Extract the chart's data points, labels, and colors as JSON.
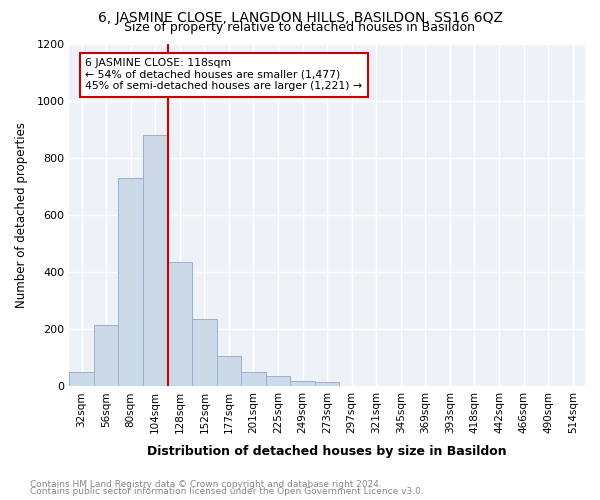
{
  "title": "6, JASMINE CLOSE, LANGDON HILLS, BASILDON, SS16 6QZ",
  "subtitle": "Size of property relative to detached houses in Basildon",
  "xlabel": "Distribution of detached houses by size in Basildon",
  "ylabel": "Number of detached properties",
  "bar_color": "#ccd9e8",
  "bar_edge_color": "#9ab0cc",
  "annotation_line_color": "#cc0000",
  "annotation_box_edge": "#cc0000",
  "annotation_text_lines": [
    "6 JASMINE CLOSE: 118sqm",
    "← 54% of detached houses are smaller (1,477)",
    "45% of semi-detached houses are larger (1,221) →"
  ],
  "categories": [
    "32sqm",
    "56sqm",
    "80sqm",
    "104sqm",
    "128sqm",
    "152sqm",
    "177sqm",
    "201sqm",
    "225sqm",
    "249sqm",
    "273sqm",
    "297sqm",
    "321sqm",
    "345sqm",
    "369sqm",
    "393sqm",
    "418sqm",
    "442sqm",
    "466sqm",
    "490sqm",
    "514sqm"
  ],
  "values": [
    50,
    215,
    730,
    880,
    435,
    235,
    105,
    50,
    37,
    20,
    15,
    0,
    0,
    0,
    0,
    0,
    0,
    0,
    0,
    0,
    0
  ],
  "property_bin_index": 4,
  "ylim": [
    0,
    1200
  ],
  "yticks": [
    0,
    200,
    400,
    600,
    800,
    1000,
    1200
  ],
  "footnote1": "Contains HM Land Registry data © Crown copyright and database right 2024.",
  "footnote2": "Contains public sector information licensed under the Open Government Licence v3.0.",
  "background_color": "#ffffff",
  "plot_bg_color": "#eef2f8"
}
